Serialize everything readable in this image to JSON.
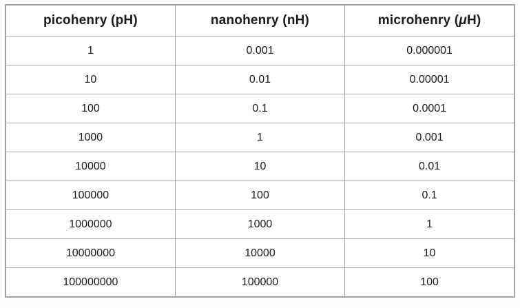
{
  "chart_data": {
    "type": "table",
    "title": "",
    "columns": [
      "picohenry (pH)",
      "nanohenry (nH)",
      "microhenry (μH)"
    ],
    "rows": [
      [
        "1",
        "0.001",
        "0.000001"
      ],
      [
        "10",
        "0.01",
        "0.00001"
      ],
      [
        "100",
        "0.1",
        "0.0001"
      ],
      [
        "1000",
        "1",
        "0.001"
      ],
      [
        "10000",
        "10",
        "0.01"
      ],
      [
        "100000",
        "100",
        "0.1"
      ],
      [
        "1000000",
        "1000",
        "1"
      ],
      [
        "10000000",
        "10000",
        "10"
      ],
      [
        "100000000",
        "100000",
        "100"
      ]
    ],
    "layout": {
      "grid": true,
      "cell_alignment": "center",
      "header_style": "bold"
    }
  },
  "display": {
    "headers": [
      {
        "pre": "picohenry (pH)",
        "mu": "",
        "post": ""
      },
      {
        "pre": "nanohenry (nH)",
        "mu": "",
        "post": ""
      },
      {
        "pre": "microhenry (",
        "mu": "μ",
        "post": "H)"
      }
    ],
    "colors": {
      "border": "#a8a8a8",
      "text": "#1b1b1b",
      "cell_background": "#ffffff",
      "page_background": "#fdfdfd"
    }
  }
}
